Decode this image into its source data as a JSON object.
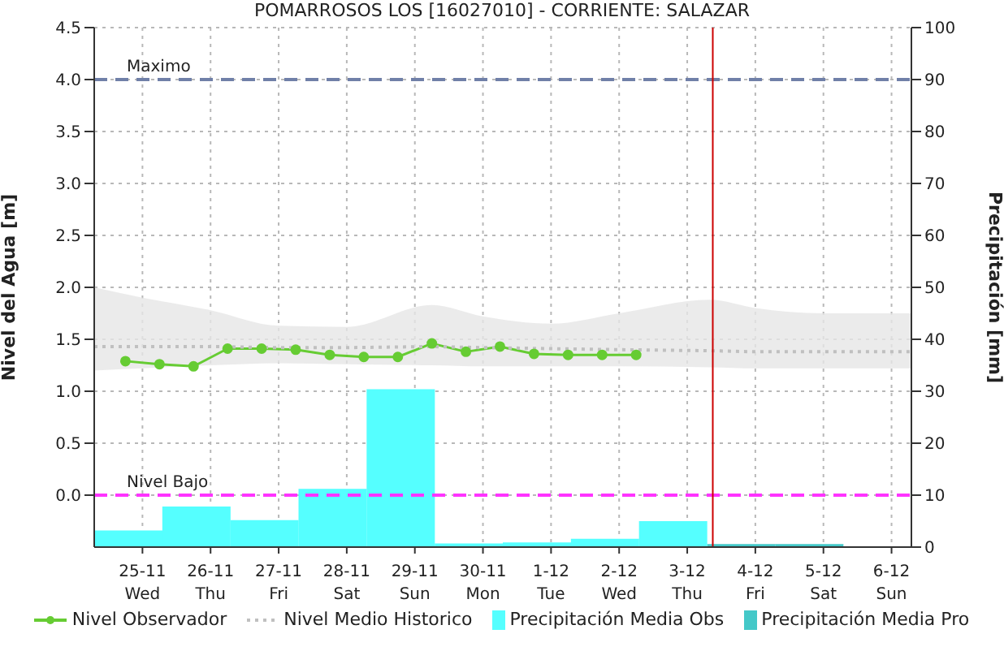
{
  "chart_data": {
    "type": "line",
    "title": "POMARROSOS LOS [16027010] - CORRIENTE: SALAZAR",
    "ylabel": "Nivel del Agua [m]",
    "y2label": "Precipitación [mm]",
    "xlim": [
      "--11-24T07:00",
      "--12-06T07:00"
    ],
    "xticks": [
      {
        "value": "--11-25",
        "label": "25-11\nWed"
      },
      {
        "value": "--11-26",
        "label": "26-11\nThu"
      },
      {
        "value": "--11-27",
        "label": "27-11\nFri"
      },
      {
        "value": "--11-28",
        "label": "28-11\nSat"
      },
      {
        "value": "--11-29",
        "label": "29-11\nSun"
      },
      {
        "value": "--11-30",
        "label": "30-11\nMon"
      },
      {
        "value": "--12-01",
        "label": "1-12\nTue"
      },
      {
        "value": "--12-02",
        "label": "2-12\nWed"
      },
      {
        "value": "--12-03",
        "label": "3-12\nThu"
      },
      {
        "value": "--12-04",
        "label": "4-12\nFri"
      },
      {
        "value": "--12-05",
        "label": "5-12\nSat"
      },
      {
        "value": "--12-06",
        "label": "6-12\nSun"
      }
    ],
    "ylim": [
      -0.5,
      4.5
    ],
    "yticks": [
      {
        "value": 0,
        "label": "0.0"
      },
      {
        "value": 0.5,
        "label": "0.5"
      },
      {
        "value": 1,
        "label": "1.0"
      },
      {
        "value": 1.5,
        "label": "1.5"
      },
      {
        "value": 2,
        "label": "2.0"
      },
      {
        "value": 2.5,
        "label": "2.5"
      },
      {
        "value": 3,
        "label": "3.0"
      },
      {
        "value": 3.5,
        "label": "3.5"
      },
      {
        "value": 4,
        "label": "4.0"
      },
      {
        "value": 4.5,
        "label": "4.5"
      }
    ],
    "y2lim": [
      0,
      100
    ],
    "y2ticks": [
      0,
      10,
      20,
      30,
      40,
      50,
      60,
      70,
      80,
      90,
      100
    ],
    "grid": true,
    "legend": "bottom",
    "series": [
      {
        "name": "Nivel Observador",
        "color": "#66cc33",
        "marker": "circle",
        "line_style": "solid",
        "x": [
          "--11-24T18:00",
          "--11-25T06:00",
          "--11-25T18:00",
          "--11-26T06:00",
          "--11-26T18:00",
          "--11-27T06:00",
          "--11-27T18:00",
          "--11-28T06:00",
          "--11-28T18:00",
          "--11-29T06:00",
          "--11-29T18:00",
          "--11-30T06:00",
          "--11-30T18:00",
          "--12-01T06:00",
          "--12-01T18:00",
          "--12-02T06:00"
        ],
        "values": [
          1.29,
          1.26,
          1.24,
          1.41,
          1.41,
          1.4,
          1.35,
          1.33,
          1.33,
          1.46,
          1.38,
          1.43,
          1.36,
          1.35,
          1.35,
          1.35
        ]
      },
      {
        "name": "Nivel Medio Historico",
        "color": "#c0c0c0",
        "marker": "none",
        "line_style": "dotted",
        "x": [
          "--11-24T07:00",
          "--11-25",
          "--11-26",
          "--11-27",
          "--11-28",
          "--11-29T06:00",
          "--11-30",
          "--12-01",
          "--12-02",
          "--12-03T08:00",
          "--12-04",
          "--12-05",
          "--12-06T07:00"
        ],
        "values": [
          1.43,
          1.43,
          1.43,
          1.42,
          1.42,
          1.43,
          1.42,
          1.41,
          1.4,
          1.39,
          1.38,
          1.38,
          1.38
        ],
        "lower": [
          1.2,
          1.22,
          1.25,
          1.27,
          1.26,
          1.25,
          1.24,
          1.24,
          1.24,
          1.23,
          1.22,
          1.22,
          1.22
        ],
        "upper": [
          2.0,
          1.9,
          1.78,
          1.63,
          1.62,
          1.83,
          1.72,
          1.65,
          1.75,
          1.88,
          1.8,
          1.75,
          1.75
        ]
      },
      {
        "name": "Precipitación Media Obs",
        "type": "bar",
        "axis": "y2",
        "color": "#55ffff",
        "x": [
          "--11-24T07:00",
          "--11-25T07:00",
          "--11-26T07:00",
          "--11-27T07:00",
          "--11-28T07:00",
          "--11-29T07:00",
          "--11-30T07:00",
          "--12-01T07:00",
          "--12-02T07:00"
        ],
        "values": [
          3.2,
          7.8,
          5.2,
          11.2,
          30.4,
          0.7,
          0.9,
          1.6,
          5.0
        ]
      },
      {
        "name": "Precipitación Media Pro",
        "type": "bar",
        "axis": "y2",
        "color": "#44c8c8",
        "x": [
          "--12-03T07:00",
          "--12-04T07:00"
        ],
        "values": [
          0.6,
          0.6
        ]
      }
    ],
    "ref_lines": [
      {
        "axis": "y",
        "value": 4,
        "label": "Maximo",
        "color": "#7080a8",
        "line_style": "dashed"
      },
      {
        "axis": "y",
        "value": 0,
        "label": "Nivel Bajo",
        "color": "#ff33ff",
        "line_style": "dashed"
      },
      {
        "axis": "x",
        "value": "--12-03T09:00",
        "label": null,
        "color": "#cc0000",
        "line_style": "solid"
      }
    ]
  }
}
